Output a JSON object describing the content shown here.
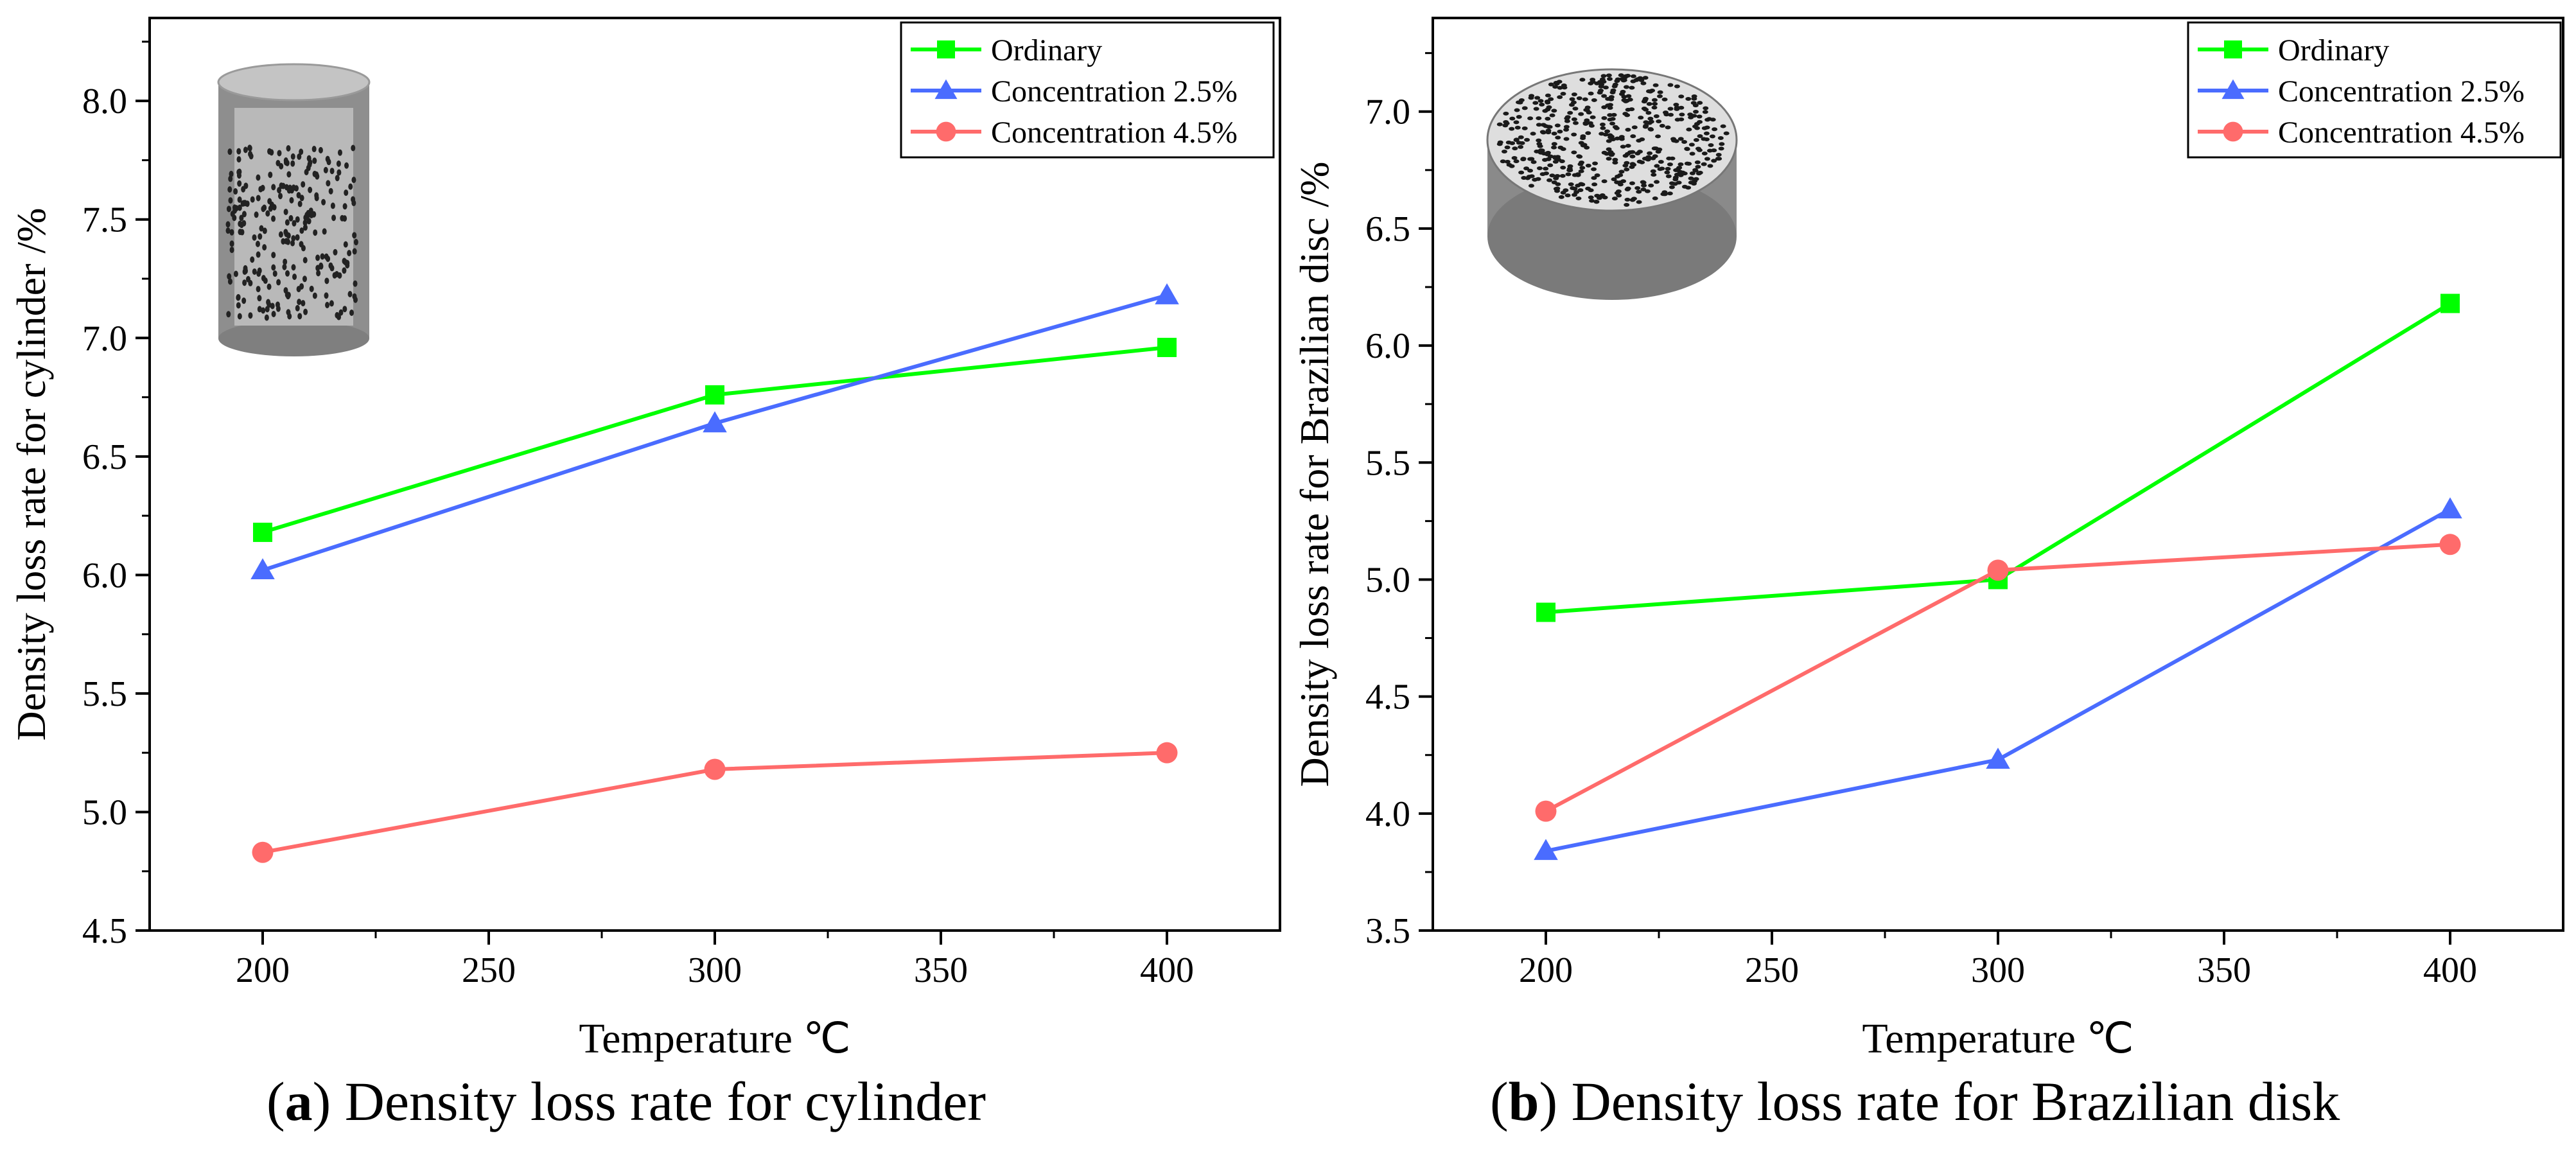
{
  "figure": {
    "colors": {
      "ordinary": "#00ff00",
      "conc25": "#4a6cff",
      "conc45": "#ff6b6b"
    },
    "captions": [
      {
        "letter": "a",
        "text": " Density loss rate for cylinder"
      },
      {
        "letter": "b",
        "text": " Density loss rate for Brazilian disk"
      }
    ]
  },
  "chart_data": [
    {
      "type": "line",
      "id": "a",
      "title": "Density loss rate for cylinder",
      "xlabel": "Temperature ℃",
      "ylabel": "Density loss rate for cylinder /%",
      "x": [
        200,
        300,
        400
      ],
      "xlim": [
        175,
        425
      ],
      "xticks": [
        "200",
        "250",
        "300",
        "350",
        "400"
      ],
      "ylim": [
        4.5,
        8.35
      ],
      "yticks": [
        "4.5",
        "5.0",
        "5.5",
        "6.0",
        "6.5",
        "7.0",
        "7.5",
        "8.0"
      ],
      "legend_position": "top-right",
      "specimen_image": "cylinder-specimen",
      "series": [
        {
          "name": "Ordinary",
          "marker": "square",
          "values": [
            6.18,
            6.76,
            6.96
          ]
        },
        {
          "name": "Concentration 2.5%",
          "marker": "triangle",
          "values": [
            6.02,
            6.64,
            7.18
          ]
        },
        {
          "name": "Concentration 4.5%",
          "marker": "circle",
          "values": [
            4.83,
            5.18,
            5.25
          ]
        }
      ]
    },
    {
      "type": "line",
      "id": "b",
      "title": "Density loss rate for Brazilian disk",
      "xlabel": "Temperature ℃",
      "ylabel": "Density loss rate for Brazilian disc /%",
      "x": [
        200,
        300,
        400
      ],
      "xlim": [
        175,
        425
      ],
      "xticks": [
        "200",
        "250",
        "300",
        "350",
        "400"
      ],
      "ylim": [
        3.5,
        7.4
      ],
      "yticks": [
        "3.5",
        "4.0",
        "4.5",
        "5.0",
        "5.5",
        "6.0",
        "6.5",
        "7.0"
      ],
      "legend_position": "top-right",
      "specimen_image": "disc-specimen",
      "series": [
        {
          "name": "Ordinary",
          "marker": "square",
          "values": [
            4.86,
            5.0,
            6.18
          ]
        },
        {
          "name": "Concentration 2.5%",
          "marker": "triangle",
          "values": [
            3.84,
            4.23,
            5.3
          ]
        },
        {
          "name": "Concentration 4.5%",
          "marker": "circle",
          "values": [
            4.01,
            5.04,
            5.15
          ]
        }
      ]
    }
  ]
}
